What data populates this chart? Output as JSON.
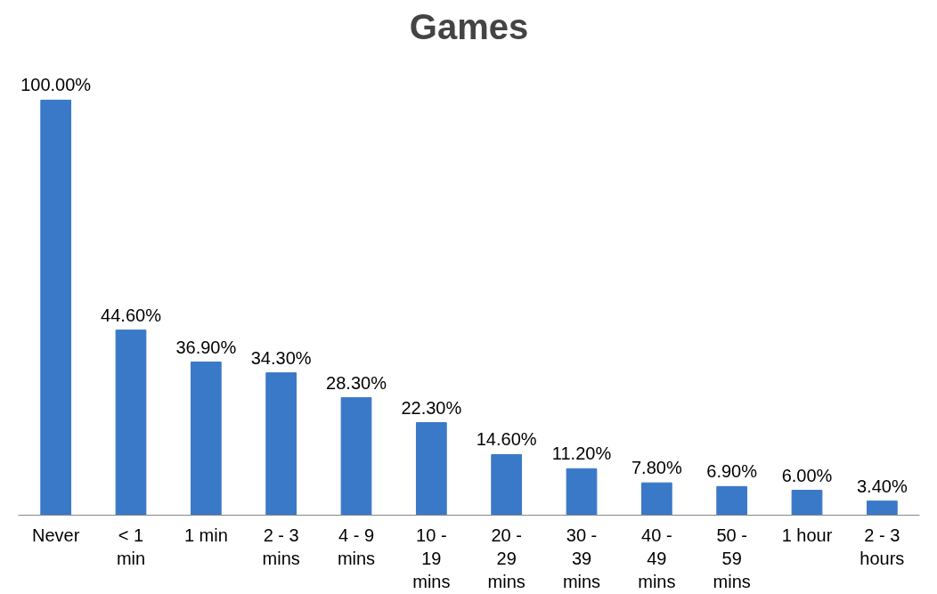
{
  "chart_data": {
    "type": "bar",
    "title": "Games",
    "categories": [
      "Never",
      "< 1\nmin",
      "1 min",
      "2 - 3\nmins",
      "4 - 9\nmins",
      "10 -\n19\nmins",
      "20 -\n29\nmins",
      "30 -\n39\nmins",
      "40 -\n49\nmins",
      "50 -\n59\nmins",
      "1 hour",
      "2 - 3\nhours"
    ],
    "values": [
      100,
      44.6,
      36.9,
      34.3,
      28.3,
      22.3,
      14.6,
      11.2,
      7.8,
      6.9,
      6.0,
      3.4
    ],
    "value_labels": [
      "100.00%",
      "44.60%",
      "36.90%",
      "34.30%",
      "28.30%",
      "22.30%",
      "14.60%",
      "11.20%",
      "7.80%",
      "6.90%",
      "6.00%",
      "3.40%"
    ],
    "color": "#3a78c8"
  }
}
